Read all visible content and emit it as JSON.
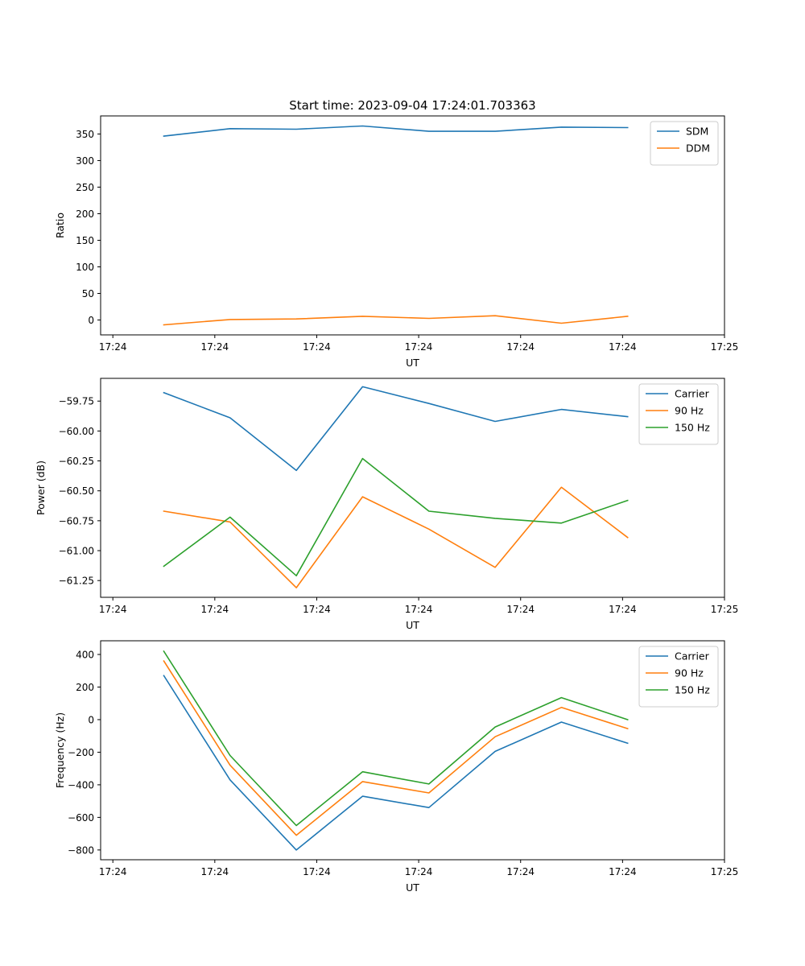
{
  "figure_title": "Start time: 2023-09-04 17:24:01.703363",
  "chart_data": [
    {
      "type": "line",
      "title": "Start time: 2023-09-04 17:24:01.703363",
      "xlabel": "UT",
      "ylabel": "Ratio",
      "x_tick_labels": [
        "17:24",
        "17:24",
        "17:24",
        "17:24",
        "17:24",
        "17:24",
        "17:25"
      ],
      "y_tick_labels": [
        "0",
        "50",
        "100",
        "150",
        "200",
        "250",
        "300",
        "350"
      ],
      "y_ticks": [
        0,
        50,
        100,
        150,
        200,
        250,
        300,
        350
      ],
      "ylim": [
        -28,
        384
      ],
      "x": [
        0.5,
        1.15,
        1.8,
        2.45,
        3.1,
        3.75,
        4.4,
        5.05
      ],
      "xlim": [
        -0.12,
        6.0
      ],
      "x_ticks": [
        0,
        1,
        2,
        3,
        4,
        5,
        6
      ],
      "legend_position": "top-right",
      "series": [
        {
          "name": "SDM",
          "color": "#1f77b4",
          "values": [
            346,
            360,
            359,
            365,
            355,
            355,
            363,
            362
          ]
        },
        {
          "name": "DDM",
          "color": "#ff7f0e",
          "values": [
            -9,
            1,
            2,
            7,
            3,
            8,
            -6,
            7
          ]
        }
      ]
    },
    {
      "type": "line",
      "title": "",
      "xlabel": "UT",
      "ylabel": "Power (dB)",
      "x_tick_labels": [
        "17:24",
        "17:24",
        "17:24",
        "17:24",
        "17:24",
        "17:24",
        "17:25"
      ],
      "y_tick_labels": [
        "−61.25",
        "−61.00",
        "−60.75",
        "−60.50",
        "−60.25",
        "−60.00",
        "−59.75"
      ],
      "y_ticks": [
        -61.25,
        -61.0,
        -60.75,
        -60.5,
        -60.25,
        -60.0,
        -59.75
      ],
      "ylim": [
        -61.39,
        -59.56
      ],
      "x": [
        0.5,
        1.15,
        1.8,
        2.45,
        3.1,
        3.75,
        4.4,
        5.05
      ],
      "xlim": [
        -0.12,
        6.0
      ],
      "x_ticks": [
        0,
        1,
        2,
        3,
        4,
        5,
        6
      ],
      "legend_position": "top-right",
      "series": [
        {
          "name": "Carrier",
          "color": "#1f77b4",
          "values": [
            -59.68,
            -59.89,
            -60.33,
            -59.63,
            -59.77,
            -59.92,
            -59.82,
            -59.88
          ]
        },
        {
          "name": "90 Hz",
          "color": "#ff7f0e",
          "values": [
            -60.67,
            -60.76,
            -61.31,
            -60.55,
            -60.82,
            -61.14,
            -60.47,
            -60.89
          ]
        },
        {
          "name": "150 Hz",
          "color": "#2ca02c",
          "values": [
            -61.13,
            -60.72,
            -61.21,
            -60.23,
            -60.67,
            -60.73,
            -60.77,
            -60.58
          ]
        }
      ]
    },
    {
      "type": "line",
      "title": "",
      "xlabel": "UT",
      "ylabel": "Frequency (Hz)",
      "x_tick_labels": [
        "17:24",
        "17:24",
        "17:24",
        "17:24",
        "17:24",
        "17:24",
        "17:25"
      ],
      "y_tick_labels": [
        "−800",
        "−600",
        "−400",
        "−200",
        "0",
        "200",
        "400"
      ],
      "y_ticks": [
        -800,
        -600,
        -400,
        -200,
        0,
        200,
        400
      ],
      "ylim": [
        -860,
        484
      ],
      "x": [
        0.5,
        1.15,
        1.8,
        2.45,
        3.1,
        3.75,
        4.4,
        5.05
      ],
      "xlim": [
        -0.12,
        6.0
      ],
      "x_ticks": [
        0,
        1,
        2,
        3,
        4,
        5,
        6
      ],
      "legend_position": "top-right",
      "series": [
        {
          "name": "Carrier",
          "color": "#1f77b4",
          "values": [
            270,
            -370,
            -800,
            -470,
            -540,
            -195,
            -15,
            -145
          ]
        },
        {
          "name": "90 Hz",
          "color": "#ff7f0e",
          "values": [
            360,
            -280,
            -710,
            -380,
            -450,
            -105,
            75,
            -55
          ]
        },
        {
          "name": "150 Hz",
          "color": "#2ca02c",
          "values": [
            420,
            -220,
            -650,
            -320,
            -395,
            -45,
            135,
            0
          ]
        }
      ]
    }
  ]
}
